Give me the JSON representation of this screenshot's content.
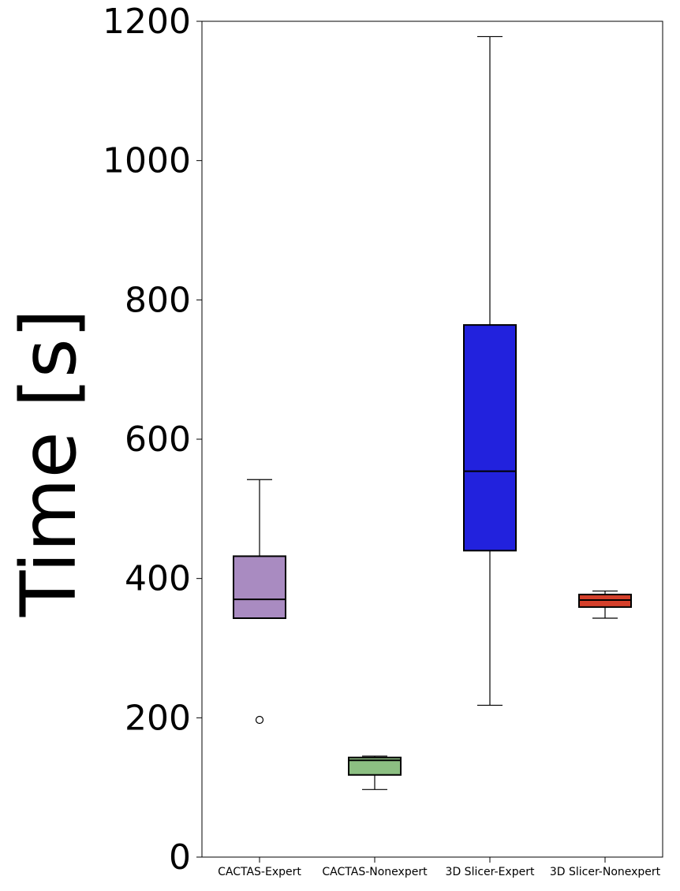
{
  "chart_data": {
    "type": "box",
    "title": "",
    "xlabel": "",
    "ylabel": "Time [s]",
    "ylim": [
      0,
      1200
    ],
    "yticks": [
      0,
      200,
      400,
      600,
      800,
      1000,
      1200
    ],
    "grid": false,
    "categories": [
      "CACTAS-Expert",
      "CACTAS-Nonexpert",
      "3D Slicer-Expert",
      "3D Slicer-Nonexpert"
    ],
    "boxes": [
      {
        "category": "CACTAS-Expert",
        "whisker_low": 343,
        "q1": 343,
        "median": 370,
        "q3": 432,
        "whisker_high": 542,
        "outliers": [
          197
        ],
        "color": "#a98bc1"
      },
      {
        "category": "CACTAS-Nonexpert",
        "whisker_low": 97,
        "q1": 118,
        "median": 139,
        "q3": 143,
        "whisker_high": 145,
        "outliers": [],
        "color": "#8cbf82"
      },
      {
        "category": "3D Slicer-Expert",
        "whisker_low": 218,
        "q1": 440,
        "median": 554,
        "q3": 764,
        "whisker_high": 1178,
        "outliers": [],
        "color": "#2222dd"
      },
      {
        "category": "3D Slicer-Nonexpert",
        "whisker_low": 343,
        "q1": 359,
        "median": 369,
        "q3": 377,
        "whisker_high": 382,
        "outliers": [],
        "color": "#d5402b"
      }
    ]
  }
}
